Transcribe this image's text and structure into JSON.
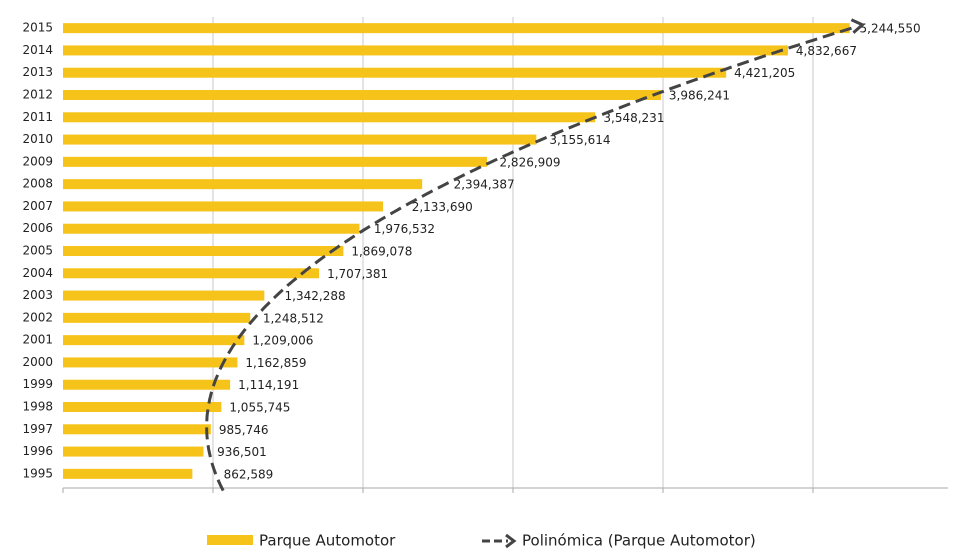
{
  "chart_data": {
    "type": "bar",
    "orientation": "horizontal",
    "categories": [
      "2015",
      "2014",
      "2013",
      "2012",
      "2011",
      "2010",
      "2009",
      "2008",
      "2007",
      "2006",
      "2005",
      "2004",
      "2003",
      "2002",
      "2001",
      "2000",
      "1999",
      "1998",
      "1997",
      "1996",
      "1995"
    ],
    "series": [
      {
        "name": "Parque Automotor",
        "color": "#f6c31a",
        "values": [
          5244550,
          4832667,
          4421205,
          3986241,
          3548231,
          3155614,
          2826909,
          2394387,
          2133690,
          1976532,
          1869078,
          1707381,
          1342288,
          1248512,
          1209006,
          1162859,
          1114191,
          1055745,
          985746,
          936501,
          862589
        ],
        "value_labels": [
          "5,244,550",
          "4,832,667",
          "4,421,205",
          "3,986,241",
          "3,548,231",
          "3,155,614",
          "2,826,909",
          "2,394,387",
          "2,133,690",
          "1,976,532",
          "1,869,078",
          "1,707,381",
          "1,342,288",
          "1,248,512",
          "1,209,006",
          "1,162,859",
          "1,114,191",
          "1,055,745",
          "985,746",
          "936,501",
          "862,589"
        ]
      }
    ],
    "trendline": {
      "name": "Polinómica (Parque Automotor)",
      "type": "polynomial",
      "color": "#444444"
    },
    "xlim": [
      0,
      5900000
    ],
    "xticks": [
      0,
      1000000,
      2000000,
      3000000,
      4000000,
      5000000
    ],
    "grid": true
  }
}
